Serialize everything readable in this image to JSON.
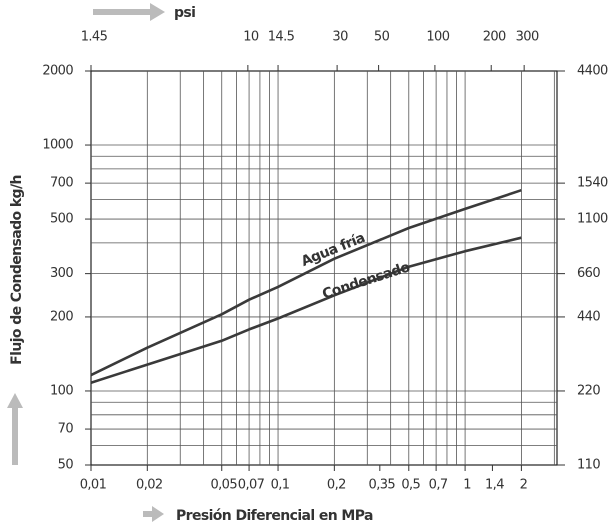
{
  "chart_data": {
    "type": "line",
    "x_label": "Presión Diferencial en MPa",
    "y_label": "Flujo de Condensado kg/h",
    "x2_label": "psi",
    "x": [
      0.01,
      0.02,
      0.05,
      0.07,
      0.1,
      0.2,
      0.5,
      1,
      2
    ],
    "series": [
      {
        "name": "Agua fría",
        "color": "#3a3a3a",
        "values": [
          116,
          150,
          205,
          235,
          265,
          345,
          460,
          550,
          655
        ]
      },
      {
        "name": "Condensado",
        "color": "#3a3a3a",
        "values": [
          108,
          128,
          160,
          178,
          197,
          245,
          320,
          370,
          420
        ]
      }
    ],
    "xscale": "log",
    "yscale": "log",
    "xlim": [
      0.01,
      3.1
    ],
    "xticks": [
      {
        "value": 0.01,
        "label": "0,01"
      },
      {
        "value": 0.02,
        "label": "0,02"
      },
      {
        "value": 0.05,
        "label": "0,05"
      },
      {
        "value": 0.07,
        "label": "0,07"
      },
      {
        "value": 0.1,
        "label": "0,1"
      },
      {
        "value": 0.2,
        "label": "0,2"
      },
      {
        "value": 0.35,
        "label": "0,35"
      },
      {
        "value": 0.5,
        "label": "0,5"
      },
      {
        "value": 0.7,
        "label": "0,7"
      },
      1,
      {
        "value": 1.4,
        "label": "1,4"
      },
      2
    ],
    "x2lim": [
      1.45,
      449.5
    ],
    "x2ticks": [
      1.45,
      10,
      14.5,
      30,
      50,
      100,
      200,
      300
    ],
    "ylim": [
      50,
      2000
    ],
    "yticks": [
      50,
      70,
      100,
      200,
      300,
      500,
      700,
      1000,
      2000
    ],
    "y2lim": [
      110,
      4400
    ],
    "y2ticks": [
      110,
      220,
      440,
      660,
      1100,
      1540,
      4400
    ],
    "grid": true,
    "xgrid": [
      0.02,
      0.03,
      0.04,
      0.05,
      0.06,
      0.07,
      0.08,
      0.09,
      0.1,
      0.2,
      0.3,
      0.4,
      0.5,
      0.6,
      0.7,
      0.8,
      0.9,
      1,
      2,
      3
    ],
    "ygrid": [
      60,
      70,
      80,
      90,
      100,
      200,
      300,
      400,
      500,
      600,
      700,
      800,
      900,
      1000
    ]
  }
}
